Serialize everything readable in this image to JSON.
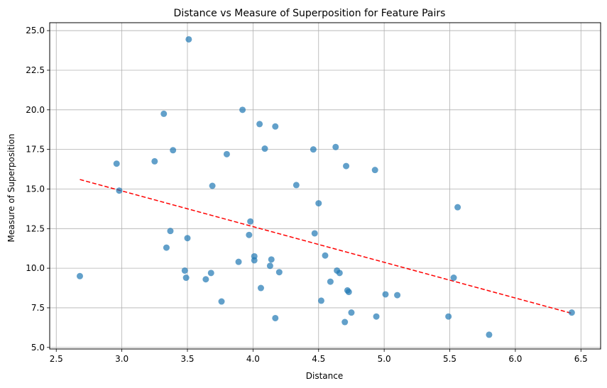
{
  "chart_data": {
    "type": "scatter",
    "title": "Distance vs Measure of Superposition for Feature Pairs",
    "xlabel": "Distance",
    "ylabel": "Measure of Superposition",
    "xlim": [
      2.45,
      6.65
    ],
    "ylim": [
      4.9,
      25.5
    ],
    "xticks": [
      2.5,
      3.0,
      3.5,
      4.0,
      4.5,
      5.0,
      5.5,
      6.0,
      6.5
    ],
    "yticks": [
      5.0,
      7.5,
      10.0,
      12.5,
      15.0,
      17.5,
      20.0,
      22.5,
      25.0
    ],
    "xtick_labels": [
      "2.5",
      "3.0",
      "3.5",
      "4.0",
      "4.5",
      "5.0",
      "5.5",
      "6.0",
      "6.5"
    ],
    "ytick_labels": [
      "5.0",
      "7.5",
      "10.0",
      "12.5",
      "15.0",
      "17.5",
      "20.0",
      "22.5",
      "25.0"
    ],
    "grid": true,
    "point_color": "#1f77b4",
    "trend_color": "#ff0000",
    "points": [
      {
        "x": 2.68,
        "y": 9.5
      },
      {
        "x": 2.96,
        "y": 16.6
      },
      {
        "x": 2.98,
        "y": 14.9
      },
      {
        "x": 3.25,
        "y": 16.75
      },
      {
        "x": 3.32,
        "y": 19.75
      },
      {
        "x": 3.34,
        "y": 11.3
      },
      {
        "x": 3.37,
        "y": 12.35
      },
      {
        "x": 3.39,
        "y": 17.45
      },
      {
        "x": 3.48,
        "y": 9.85
      },
      {
        "x": 3.49,
        "y": 9.4
      },
      {
        "x": 3.5,
        "y": 11.9
      },
      {
        "x": 3.51,
        "y": 24.45
      },
      {
        "x": 3.64,
        "y": 9.3
      },
      {
        "x": 3.68,
        "y": 9.7
      },
      {
        "x": 3.69,
        "y": 15.2
      },
      {
        "x": 3.76,
        "y": 7.9
      },
      {
        "x": 3.8,
        "y": 17.2
      },
      {
        "x": 3.89,
        "y": 10.4
      },
      {
        "x": 3.92,
        "y": 20.0
      },
      {
        "x": 3.97,
        "y": 12.1
      },
      {
        "x": 3.98,
        "y": 12.95
      },
      {
        "x": 4.01,
        "y": 10.75
      },
      {
        "x": 4.01,
        "y": 10.5
      },
      {
        "x": 4.05,
        "y": 19.1
      },
      {
        "x": 4.06,
        "y": 8.75
      },
      {
        "x": 4.09,
        "y": 17.55
      },
      {
        "x": 4.13,
        "y": 10.15
      },
      {
        "x": 4.14,
        "y": 10.55
      },
      {
        "x": 4.17,
        "y": 18.95
      },
      {
        "x": 4.17,
        "y": 6.85
      },
      {
        "x": 4.2,
        "y": 9.75
      },
      {
        "x": 4.33,
        "y": 15.25
      },
      {
        "x": 4.46,
        "y": 17.5
      },
      {
        "x": 4.47,
        "y": 12.2
      },
      {
        "x": 4.5,
        "y": 14.1
      },
      {
        "x": 4.52,
        "y": 7.95
      },
      {
        "x": 4.55,
        "y": 10.8
      },
      {
        "x": 4.59,
        "y": 9.15
      },
      {
        "x": 4.63,
        "y": 17.65
      },
      {
        "x": 4.64,
        "y": 9.85
      },
      {
        "x": 4.66,
        "y": 9.7
      },
      {
        "x": 4.7,
        "y": 6.6
      },
      {
        "x": 4.71,
        "y": 16.45
      },
      {
        "x": 4.72,
        "y": 8.6
      },
      {
        "x": 4.73,
        "y": 8.5
      },
      {
        "x": 4.75,
        "y": 7.2
      },
      {
        "x": 4.93,
        "y": 16.2
      },
      {
        "x": 4.94,
        "y": 6.95
      },
      {
        "x": 5.01,
        "y": 8.35
      },
      {
        "x": 5.1,
        "y": 8.3
      },
      {
        "x": 5.49,
        "y": 6.95
      },
      {
        "x": 5.53,
        "y": 9.4
      },
      {
        "x": 5.56,
        "y": 13.85
      },
      {
        "x": 5.8,
        "y": 5.8
      },
      {
        "x": 6.43,
        "y": 7.2
      }
    ],
    "trend_line": {
      "x": [
        2.68,
        6.43
      ],
      "y": [
        15.6,
        7.15
      ]
    }
  }
}
